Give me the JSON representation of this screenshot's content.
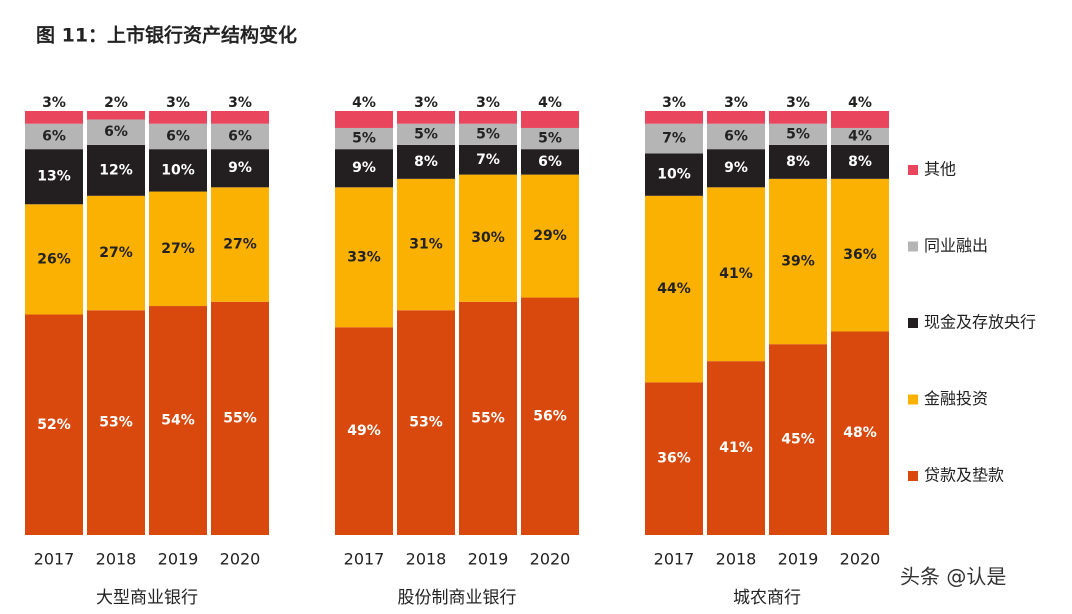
{
  "chart_data": {
    "type": "stacked_bar",
    "title": "图 11：上市银行资产结构变化",
    "groups": [
      "大型商业银行",
      "股份制商业银行",
      "城农商行"
    ],
    "categories": [
      "2017",
      "2018",
      "2019",
      "2020"
    ],
    "series": [
      {
        "name": "贷款及垫款",
        "color": "#d9480c",
        "values": [
          [
            52,
            53,
            54,
            55
          ],
          [
            49,
            53,
            55,
            56
          ],
          [
            36,
            41,
            45,
            48
          ]
        ],
        "value_labels": [
          [
            "52%",
            "53%",
            "54%",
            "55%"
          ],
          [
            "49%",
            "53%",
            "55%",
            "56%"
          ],
          [
            "36%",
            "41%",
            "45%",
            "48%"
          ]
        ]
      },
      {
        "name": "金融投资",
        "color": "#fbb102",
        "values": [
          [
            26,
            27,
            27,
            27
          ],
          [
            33,
            31,
            30,
            29
          ],
          [
            44,
            41,
            39,
            36
          ]
        ],
        "value_labels": [
          [
            "26%",
            "27%",
            "27%",
            "27%"
          ],
          [
            "33%",
            "31%",
            "30%",
            "29%"
          ],
          [
            "44%",
            "41%",
            "39%",
            "36%"
          ]
        ]
      },
      {
        "name": "现金及存放央行",
        "color": "#231f20",
        "values": [
          [
            13,
            12,
            10,
            9
          ],
          [
            9,
            8,
            7,
            6
          ],
          [
            10,
            9,
            8,
            8
          ]
        ],
        "value_labels": [
          [
            "13%",
            "12%",
            "10%",
            "9%"
          ],
          [
            "9%",
            "8%",
            "7%",
            "6%"
          ],
          [
            "10%",
            "9%",
            "8%",
            "8%"
          ]
        ]
      },
      {
        "name": "同业融出",
        "color": "#b5b5b5",
        "values": [
          [
            6,
            6,
            6,
            6
          ],
          [
            5,
            5,
            5,
            5
          ],
          [
            7,
            6,
            5,
            4
          ]
        ],
        "value_labels": [
          [
            "6%",
            "6%",
            "6%",
            "6%"
          ],
          [
            "5%",
            "5%",
            "5%",
            "5%"
          ],
          [
            "7%",
            "6%",
            "5%",
            "4%"
          ]
        ]
      },
      {
        "name": "其他",
        "color": "#e9455c",
        "values": [
          [
            3,
            2,
            3,
            3
          ],
          [
            4,
            3,
            3,
            4
          ],
          [
            3,
            3,
            3,
            4
          ]
        ],
        "value_labels": [
          [
            "3%",
            "2%",
            "3%",
            "3%"
          ],
          [
            "4%",
            "3%",
            "3%",
            "4%"
          ],
          [
            "3%",
            "3%",
            "3%",
            "4%"
          ]
        ]
      }
    ],
    "watermark": "头条 @认是"
  }
}
